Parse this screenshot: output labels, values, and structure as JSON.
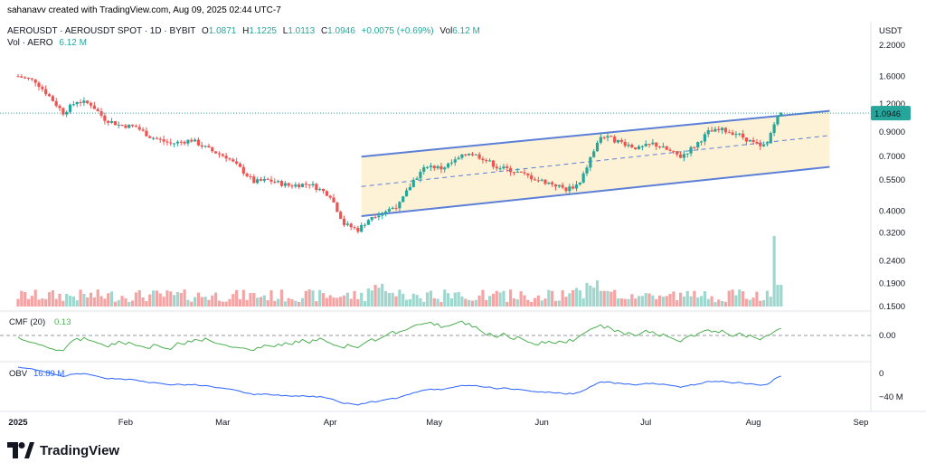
{
  "header": {
    "credit": "sahanavv created with TradingView.com, Aug 09, 2025 02:44 UTC-7",
    "symbol": "AEROUSDT · AEROUSDT SPOT · 1D · BYBIT",
    "o_label": "O",
    "o_value": "1.0871",
    "h_label": "H",
    "h_value": "1.1225",
    "l_label": "L",
    "l_value": "1.0113",
    "c_label": "C",
    "c_value": "1.0946",
    "change": "+0.0075 (+0.69%)",
    "vol_label": "Vol",
    "vol_value": "6.12 M",
    "vol_sub_label": "Vol · AERO",
    "vol_sub_value": "6.12 M"
  },
  "colors": {
    "up": "#26a69a",
    "down": "#ef5350",
    "up_vol": "#9fd7cf",
    "down_vol": "#f5a3a3",
    "channel_line": "#5b7fd6",
    "channel_fill": "#fdf2d6",
    "price_tag": "#26a69a",
    "cmf": "#4caf50",
    "obv": "#2962ff"
  },
  "indicators": {
    "cmf_label": "CMF (20)",
    "cmf_value": "0.13",
    "obv_label": "OBV",
    "obv_value": "16.89 M"
  },
  "chart_data": {
    "type": "candlestick",
    "price_axis_unit": "USDT",
    "price_ticks": [
      "2.2000",
      "1.6000",
      "1.2000",
      "0.9000",
      "0.7000",
      "0.5500",
      "0.4000",
      "0.3200",
      "0.2400",
      "0.1900",
      "0.1500"
    ],
    "current_price": "1.0946",
    "x_ticks": [
      "2025",
      "Feb",
      "Mar",
      "Apr",
      "May",
      "Jun",
      "Jul",
      "Aug",
      "Sep"
    ],
    "cmf_ticks": [
      "0.00"
    ],
    "obv_ticks": [
      "0",
      "−40 M"
    ],
    "price_path": [
      [
        "2025-01-01",
        1.6
      ],
      [
        "2025-01-06",
        1.52
      ],
      [
        "2025-01-10",
        1.3
      ],
      [
        "2025-01-14",
        1.1
      ],
      [
        "2025-01-18",
        1.24
      ],
      [
        "2025-01-22",
        1.2
      ],
      [
        "2025-01-26",
        1.03
      ],
      [
        "2025-01-30",
        0.97
      ],
      [
        "2025-02-04",
        0.95
      ],
      [
        "2025-02-08",
        0.86
      ],
      [
        "2025-02-14",
        0.8
      ],
      [
        "2025-02-20",
        0.83
      ],
      [
        "2025-02-26",
        0.74
      ],
      [
        "2025-03-02",
        0.7
      ],
      [
        "2025-03-06",
        0.62
      ],
      [
        "2025-03-10",
        0.54
      ],
      [
        "2025-03-14",
        0.55
      ],
      [
        "2025-03-20",
        0.52
      ],
      [
        "2025-03-26",
        0.53
      ],
      [
        "2025-04-01",
        0.47
      ],
      [
        "2025-04-05",
        0.35
      ],
      [
        "2025-04-09",
        0.33
      ],
      [
        "2025-04-13",
        0.38
      ],
      [
        "2025-04-17",
        0.4
      ],
      [
        "2025-04-21",
        0.43
      ],
      [
        "2025-04-25",
        0.55
      ],
      [
        "2025-04-29",
        0.64
      ],
      [
        "2025-05-03",
        0.62
      ],
      [
        "2025-05-07",
        0.67
      ],
      [
        "2025-05-11",
        0.73
      ],
      [
        "2025-05-15",
        0.69
      ],
      [
        "2025-05-19",
        0.63
      ],
      [
        "2025-05-23",
        0.61
      ],
      [
        "2025-05-27",
        0.58
      ],
      [
        "2025-05-31",
        0.55
      ],
      [
        "2025-06-04",
        0.53
      ],
      [
        "2025-06-08",
        0.5
      ],
      [
        "2025-06-12",
        0.53
      ],
      [
        "2025-06-15",
        0.69
      ],
      [
        "2025-06-18",
        0.86
      ],
      [
        "2025-06-21",
        0.84
      ],
      [
        "2025-06-25",
        0.8
      ],
      [
        "2025-06-29",
        0.76
      ],
      [
        "2025-07-03",
        0.8
      ],
      [
        "2025-07-07",
        0.75
      ],
      [
        "2025-07-11",
        0.7
      ],
      [
        "2025-07-15",
        0.78
      ],
      [
        "2025-07-19",
        0.9
      ],
      [
        "2025-07-23",
        0.92
      ],
      [
        "2025-07-27",
        0.89
      ],
      [
        "2025-07-31",
        0.82
      ],
      [
        "2025-08-03",
        0.77
      ],
      [
        "2025-08-05",
        0.8
      ],
      [
        "2025-08-07",
        1.0
      ],
      [
        "2025-08-09",
        1.0946
      ]
    ],
    "channel": {
      "upper": [
        [
          "2025-04-10",
          0.7
        ],
        [
          "2025-08-23",
          1.12
        ]
      ],
      "middle": [
        [
          "2025-04-10",
          0.515
        ],
        [
          "2025-08-23",
          0.87
        ]
      ],
      "lower": [
        [
          "2025-04-10",
          0.38
        ],
        [
          "2025-08-23",
          0.63
        ]
      ]
    },
    "volume_spike": [
      [
        "2025-08-08",
        3.1
      ]
    ],
    "cmf_range": [
      -0.3,
      0.3
    ],
    "obv_range": [
      -60,
      20
    ]
  }
}
